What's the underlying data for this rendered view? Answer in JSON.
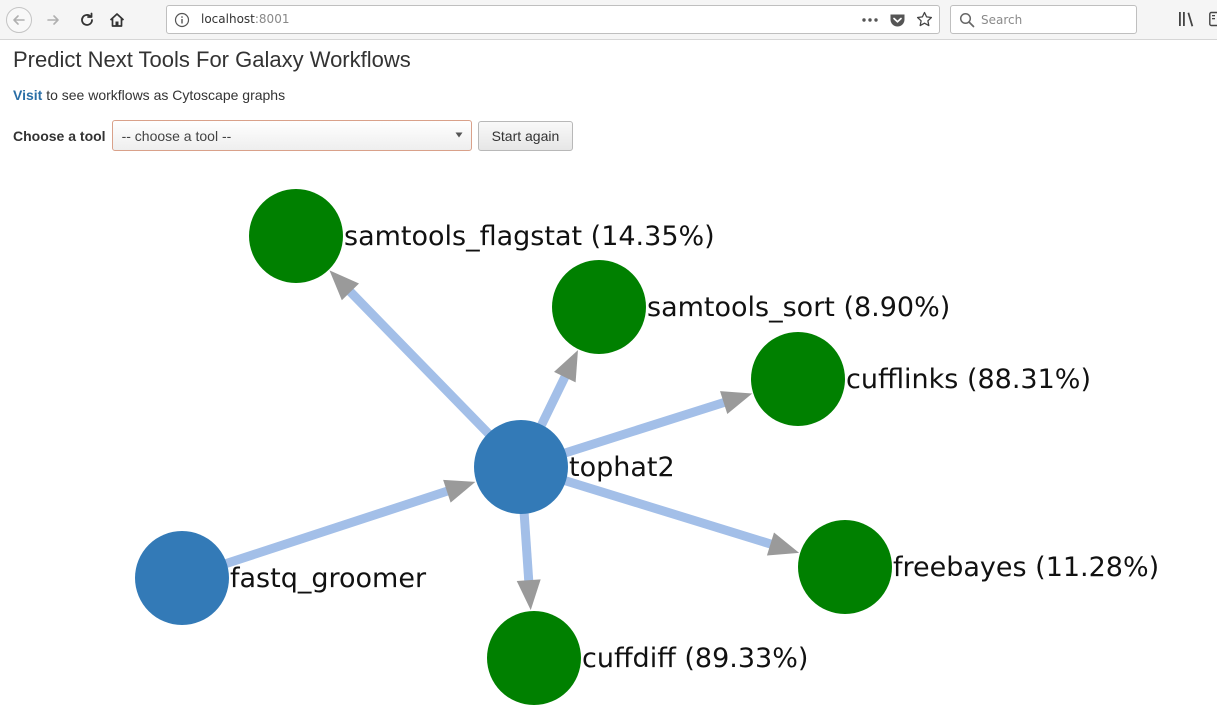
{
  "browser": {
    "url_host": "localhost",
    "url_port": ":8001",
    "search_placeholder": "Search"
  },
  "page": {
    "title": "Predict Next Tools For Galaxy Workflows",
    "visit_link": "Visit",
    "visit_text": " to see workflows as Cytoscape graphs",
    "tool_label": "Choose a tool",
    "tool_select_value": "-- choose a tool --",
    "start_again_label": "Start again"
  },
  "graph": {
    "colors": {
      "input_node": "#337ab7",
      "predicted_node": "#008000",
      "edge": "#a3bfe8",
      "arrow": "#9a9a9a"
    },
    "nodes": [
      {
        "id": "fastq_groomer",
        "label": "fastq_groomer",
        "kind": "input"
      },
      {
        "id": "tophat2",
        "label": "tophat2",
        "kind": "input"
      },
      {
        "id": "samtools_flagstat",
        "label": "samtools_flagstat (14.35%)",
        "kind": "predicted"
      },
      {
        "id": "samtools_sort",
        "label": "samtools_sort (8.90%)",
        "kind": "predicted"
      },
      {
        "id": "cufflinks",
        "label": "cufflinks (88.31%)",
        "kind": "predicted"
      },
      {
        "id": "freebayes",
        "label": "freebayes (11.28%)",
        "kind": "predicted"
      },
      {
        "id": "cuffdiff",
        "label": "cuffdiff (89.33%)",
        "kind": "predicted"
      }
    ],
    "edges": [
      {
        "from": "fastq_groomer",
        "to": "tophat2"
      },
      {
        "from": "tophat2",
        "to": "samtools_flagstat"
      },
      {
        "from": "tophat2",
        "to": "samtools_sort"
      },
      {
        "from": "tophat2",
        "to": "cufflinks"
      },
      {
        "from": "tophat2",
        "to": "freebayes"
      },
      {
        "from": "tophat2",
        "to": "cuffdiff"
      }
    ]
  }
}
